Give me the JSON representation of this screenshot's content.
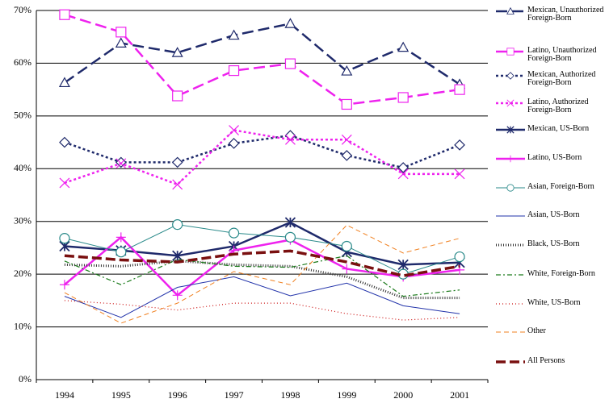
{
  "chart_data": {
    "type": "line",
    "categories": [
      "1994",
      "1995",
      "1996",
      "1997",
      "1998",
      "1999",
      "2000",
      "2001"
    ],
    "ylim": [
      0,
      70
    ],
    "yticks": [
      {
        "value": 0,
        "label": "0%"
      },
      {
        "value": 10,
        "label": "10%"
      },
      {
        "value": 20,
        "label": "20%"
      },
      {
        "value": 30,
        "label": "30%"
      },
      {
        "value": 40,
        "label": "40%"
      },
      {
        "value": 50,
        "label": "50%"
      },
      {
        "value": 60,
        "label": "60%"
      },
      {
        "value": 70,
        "label": "70%"
      }
    ],
    "grid": true,
    "legend": "right",
    "series": [
      {
        "name": "Mexican, Unauthorized Foreign-Born",
        "color": "#1f2a6b",
        "dash": "14 6",
        "width": 2.5,
        "marker": "triangle",
        "values": [
          56.3,
          63.8,
          62,
          65.3,
          67.5,
          58.5,
          63,
          56
        ]
      },
      {
        "name": "Latino, Unauthorized Foreign-Born",
        "color": "#ee22ee",
        "dash": "14 6",
        "width": 2.5,
        "marker": "square",
        "values": [
          69.2,
          65.9,
          53.8,
          58.6,
          59.9,
          52.2,
          53.5,
          55
        ]
      },
      {
        "name": "Mexican, Authorized Foreign-Born",
        "color": "#1f2a6b",
        "dash": "3 3",
        "width": 2.5,
        "marker": "diamond",
        "values": [
          45,
          41.2,
          41.2,
          44.8,
          46.3,
          42.5,
          40.2,
          44.5
        ]
      },
      {
        "name": "Latino, Authorized Foreign-Born",
        "color": "#ee22ee",
        "dash": "3 3",
        "width": 2.5,
        "marker": "x",
        "values": [
          37.3,
          41,
          37,
          47.3,
          45.5,
          45.5,
          39,
          39
        ]
      },
      {
        "name": "Mexican, US-Born",
        "color": "#1f2a6b",
        "dash": "none",
        "width": 2.5,
        "marker": "star",
        "values": [
          25.3,
          24.5,
          23.5,
          25.3,
          29.8,
          24.2,
          21.8,
          22.2
        ]
      },
      {
        "name": "Latino, US-Born",
        "color": "#ee22ee",
        "dash": "none",
        "width": 2.5,
        "marker": "plus",
        "values": [
          18,
          27,
          16,
          24.5,
          26.5,
          21,
          19.5,
          20.8
        ]
      },
      {
        "name": "Asian, Foreign-Born",
        "color": "#2a8a8a",
        "dash": "none",
        "width": 1,
        "marker": "circle",
        "values": [
          26.8,
          24.2,
          29.4,
          27.8,
          27,
          25.3,
          20,
          23.3
        ]
      },
      {
        "name": "Asian, US-Born",
        "color": "#2233aa",
        "dash": "none",
        "width": 1,
        "marker": "none",
        "values": [
          15.8,
          11.8,
          17.5,
          19.5,
          15.9,
          18.3,
          14,
          12.5
        ]
      },
      {
        "name": "Black, US-Born",
        "color": "#333333",
        "dash": "1 2",
        "width": 3,
        "marker": "none",
        "values": [
          21.8,
          21.5,
          22.5,
          21.8,
          21.5,
          19.5,
          15.5,
          15.5
        ]
      },
      {
        "name": "White, Foreign-Born",
        "color": "#1a7a1a",
        "dash": "6 3 2 3",
        "width": 1.2,
        "marker": "none",
        "values": [
          22.5,
          18,
          22.8,
          21.5,
          21.3,
          23.5,
          15.8,
          17
        ]
      },
      {
        "name": "White, US-Born",
        "color": "#cc1111",
        "dash": "1 3",
        "width": 1.2,
        "marker": "none",
        "values": [
          15,
          14.3,
          13.2,
          14.5,
          14.5,
          12.5,
          11.3,
          11.8
        ]
      },
      {
        "name": "Other",
        "color": "#f08020",
        "dash": "6 4",
        "width": 1,
        "marker": "none",
        "values": [
          16.5,
          10.7,
          14.5,
          20.5,
          18,
          29.3,
          24,
          26.8
        ]
      },
      {
        "name": "All Persons",
        "color": "#7a1010",
        "dash": "12 5",
        "width": 3.5,
        "marker": "none",
        "values": [
          23.5,
          22.7,
          22.3,
          23.8,
          24.4,
          22.3,
          19.7,
          21.5
        ]
      }
    ]
  }
}
